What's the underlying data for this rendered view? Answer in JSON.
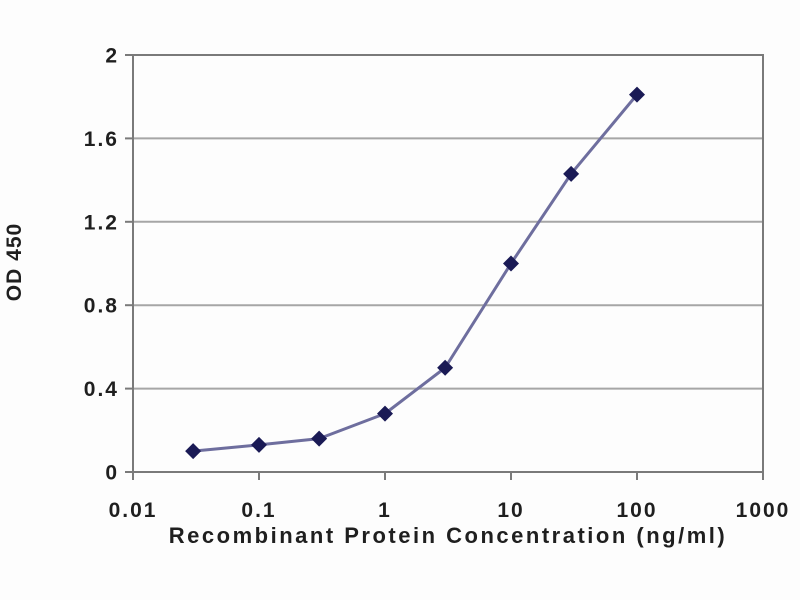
{
  "chart_data": {
    "type": "line",
    "x": [
      0.03,
      0.1,
      0.3,
      1,
      3,
      10,
      30,
      100
    ],
    "y": [
      0.1,
      0.13,
      0.16,
      0.28,
      0.5,
      1.0,
      1.43,
      1.81
    ],
    "xlabel": "Recombinant Protein Concentration (ng/ml)",
    "ylabel": "OD 450",
    "x_scale": "log",
    "xlim": [
      0.01,
      1000
    ],
    "ylim": [
      0,
      2
    ],
    "x_ticks": [
      "0.01",
      "0.1",
      "1",
      "10",
      "100",
      "1000"
    ],
    "x_tick_values": [
      0.01,
      0.1,
      1,
      10,
      100,
      1000
    ],
    "y_ticks": [
      "0",
      "0.4",
      "0.8",
      "1.2",
      "1.6",
      "2"
    ],
    "y_tick_values": [
      0,
      0.4,
      0.8,
      1.2,
      1.6,
      2
    ],
    "grid": "horizontal",
    "legend": "none",
    "marker": "diamond",
    "colors": {
      "line": "#6e6e9e",
      "marker": "#1a1a55",
      "grid": "#a6a6a6",
      "frame": "#7a7a7a",
      "text": "#1f1f1f",
      "background": "#fdfdfd"
    }
  }
}
